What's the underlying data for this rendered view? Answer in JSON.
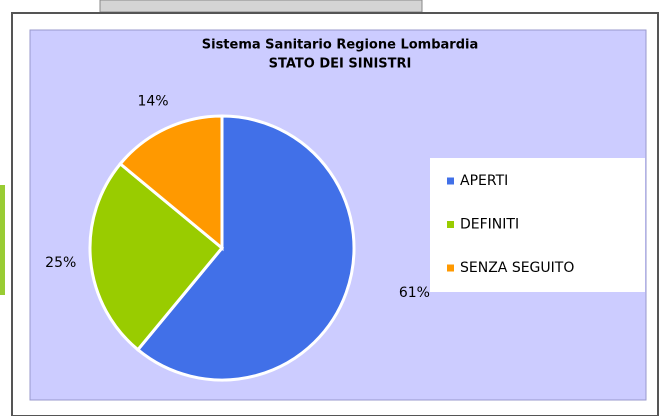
{
  "chart_data": {
    "type": "pie",
    "title": "Sistema Sanitario Regione Lombardia",
    "subtitle": "STATO DEI SINISTRI",
    "categories": [
      "APERTI",
      "DEFINITI",
      "SENZA SEGUITO"
    ],
    "values": [
      61,
      25,
      14
    ],
    "value_labels": [
      "61%",
      "25%",
      "14%"
    ],
    "colors": [
      "#4170e8",
      "#99cc00",
      "#ff9900"
    ],
    "legend": "right"
  }
}
